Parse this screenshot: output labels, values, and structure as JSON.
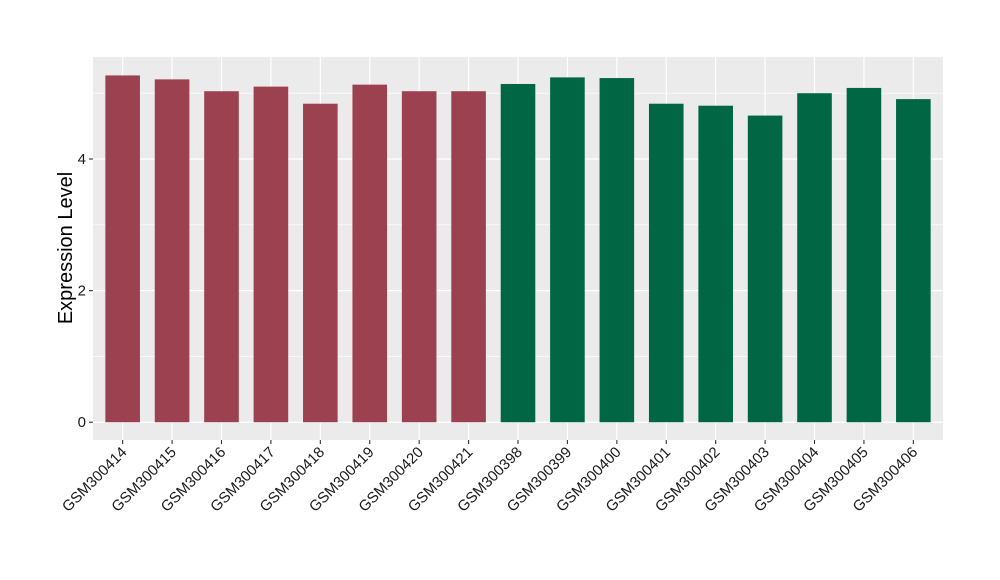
{
  "chart_data": {
    "type": "bar",
    "categories": [
      "GSM300414",
      "GSM300415",
      "GSM300416",
      "GSM300417",
      "GSM300418",
      "GSM300419",
      "GSM300420",
      "GSM300421",
      "GSM300398",
      "GSM300399",
      "GSM300400",
      "GSM300401",
      "GSM300402",
      "GSM300403",
      "GSM300404",
      "GSM300405",
      "GSM300406"
    ],
    "values": [
      5.27,
      5.21,
      5.03,
      5.1,
      4.84,
      5.13,
      5.03,
      5.03,
      5.14,
      5.24,
      5.23,
      4.84,
      4.81,
      4.66,
      5.0,
      5.08,
      4.91
    ],
    "bar_colors": [
      "#9b4150",
      "#9b4150",
      "#9b4150",
      "#9b4150",
      "#9b4150",
      "#9b4150",
      "#9b4150",
      "#9b4150",
      "#006644",
      "#006644",
      "#006644",
      "#006644",
      "#006644",
      "#006644",
      "#006644",
      "#006644",
      "#006644"
    ],
    "title": "",
    "xlabel": "",
    "ylabel": "Expression Level",
    "ylim": [
      -0.27,
      5.55
    ],
    "yticks": [
      0,
      2,
      4
    ],
    "ytick_labels": [
      "0",
      "2",
      "4"
    ],
    "grid": true,
    "panel_background": "#ebebeb",
    "grid_color": "#ffffff"
  }
}
